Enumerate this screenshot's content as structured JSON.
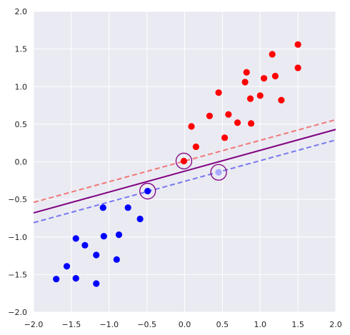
{
  "chart_data": {
    "type": "scatter",
    "title": "",
    "xlabel": "",
    "ylabel": "",
    "xlim": [
      -2.0,
      2.0
    ],
    "ylim": [
      -2.0,
      2.0
    ],
    "grid": true,
    "legend": "none",
    "x_ticks": [
      -2.0,
      -1.5,
      -1.0,
      -0.5,
      0.0,
      0.5,
      1.0,
      1.5,
      2.0
    ],
    "y_ticks": [
      -2.0,
      -1.5,
      -1.0,
      -0.5,
      0.0,
      0.5,
      1.0,
      1.5,
      2.0
    ],
    "x_tick_labels": [
      "−2.0",
      "−1.5",
      "−1.0",
      "−0.5",
      "0.0",
      "0.5",
      "1.0",
      "1.5",
      "2.0"
    ],
    "y_tick_labels": [
      "−2.0",
      "−1.5",
      "−1.0",
      "−0.5",
      "0.0",
      "0.5",
      "1.0",
      "1.5",
      "2.0"
    ],
    "colors": {
      "background": "#eaeaf2",
      "grid": "#ffffff",
      "class_red": "#ff0000",
      "class_blue": "#0000ff",
      "light_blue": "#aaaaff",
      "boundary": "#800080",
      "margin_red": "#f07878",
      "margin_blue": "#7878f0",
      "support_ring": "#800080"
    },
    "series": [
      {
        "color": "#ff0000",
        "points": [
          [
            0.09,
            0.47
          ],
          [
            0.15,
            0.2
          ],
          [
            0.33,
            0.61
          ],
          [
            0.45,
            0.92
          ],
          [
            0.53,
            0.32
          ],
          [
            0.58,
            0.63
          ],
          [
            0.7,
            0.52
          ],
          [
            0.8,
            1.06
          ],
          [
            0.82,
            1.19
          ],
          [
            0.87,
            0.84
          ],
          [
            0.88,
            0.51
          ],
          [
            1.0,
            0.88
          ],
          [
            1.05,
            1.11
          ],
          [
            1.16,
            1.43
          ],
          [
            1.2,
            1.14
          ],
          [
            1.28,
            0.82
          ],
          [
            1.5,
            1.56
          ],
          [
            1.5,
            1.25
          ],
          [
            -0.01,
            0.01
          ]
        ]
      },
      {
        "color": "#0000ff",
        "points": [
          [
            -1.7,
            -1.56
          ],
          [
            -1.56,
            -1.39
          ],
          [
            -1.44,
            -1.02
          ],
          [
            -1.44,
            -1.55
          ],
          [
            -1.32,
            -1.11
          ],
          [
            -1.17,
            -1.24
          ],
          [
            -1.17,
            -1.62
          ],
          [
            -1.08,
            -0.61
          ],
          [
            -1.07,
            -0.99
          ],
          [
            -0.9,
            -1.3
          ],
          [
            -0.87,
            -0.97
          ],
          [
            -0.75,
            -0.61
          ],
          [
            -0.59,
            -0.76
          ],
          [
            -0.49,
            -0.39
          ]
        ]
      },
      {
        "color": "#aaaaff",
        "points": [
          [
            0.45,
            -0.14
          ]
        ]
      }
    ],
    "lines": [
      {
        "role": "decision-boundary",
        "color": "#800080",
        "style": "solid",
        "x": [
          -2.0,
          2.0
        ],
        "y": [
          -0.68,
          0.43
        ]
      },
      {
        "role": "margin-upper",
        "color": "#f07878",
        "style": "dashed",
        "x": [
          -2.0,
          2.0
        ],
        "y": [
          -0.54,
          0.56
        ]
      },
      {
        "role": "margin-lower",
        "color": "#7878f0",
        "style": "dashed",
        "x": [
          -2.0,
          2.0
        ],
        "y": [
          -0.81,
          0.29
        ]
      }
    ],
    "support_vectors": [
      [
        -0.01,
        0.01
      ],
      [
        -0.49,
        -0.39
      ],
      [
        0.45,
        -0.14
      ]
    ]
  }
}
